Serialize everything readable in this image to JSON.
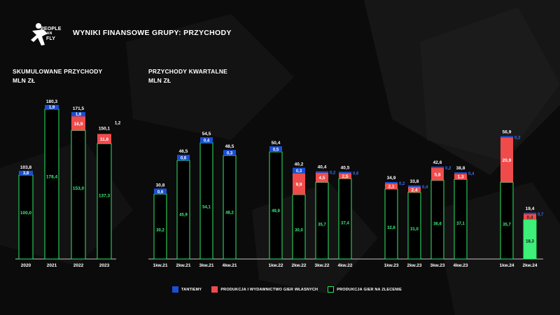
{
  "header": {
    "logo_line1": "PEOPLE",
    "logo_line2": "CAN",
    "logo_line3": "FLY",
    "title": "WYNIKI FINANSOWE GRUPY: PRZYCHODY"
  },
  "cumulative_section": {
    "title_line1": "SKUMULOWANE PRZYCHODY",
    "title_line2": "MLN ZŁ"
  },
  "quarterly_section": {
    "title_line1": "PRZYCHODY KWARTALNE",
    "title_line2": "MLN ZŁ"
  },
  "legend": [
    {
      "label": "TANTIEMY",
      "color": "#1a4fd6"
    },
    {
      "label": "PRODUKCJA I WYDAWNICTWO GIER WŁASNYCH",
      "color": "#f04b4b"
    },
    {
      "label": "PRODUKCJA GIER NA ZLECENIE",
      "color": "#2ee866"
    }
  ],
  "colors": {
    "tantiemy": "#1a4fd6",
    "own": "#f04b4b",
    "contract": "#2ee866",
    "contract_fill": "#000000",
    "contract_highlight_fill": "#3ef07a",
    "contract_label": "#3ef07a",
    "royalty_outside_label": "#3a6df0"
  },
  "chart_data": [
    {
      "type": "bar",
      "stacked": true,
      "title": "SKUMULOWANE PRZYCHODY MLN ZŁ",
      "categories": [
        "2020",
        "2021",
        "2022",
        "2023"
      ],
      "series": [
        {
          "name": "PRODUKCJA GIER NA ZLECENIE",
          "values": [
            100.0,
            178.4,
            153.0,
            137.3
          ],
          "labels": [
            "100,0",
            "178,4",
            "153,0",
            "137,3"
          ]
        },
        {
          "name": "PRODUKCJA I WYDAWNICTWO GIER WŁASNYCH",
          "values": [
            0,
            0,
            16.9,
            11.6
          ],
          "labels": [
            "",
            "",
            "16,9",
            "11,6"
          ]
        },
        {
          "name": "TANTIEMY",
          "values": [
            3.8,
            1.9,
            1.6,
            1.2
          ],
          "labels": [
            "3,8",
            "1,9",
            "1,6",
            "1,2"
          ]
        }
      ],
      "totals": [
        "103,8",
        "180,3",
        "171,5",
        "150,1"
      ],
      "ylim": [
        0,
        190
      ]
    },
    {
      "type": "bar",
      "stacked": true,
      "title": "PRZYCHODY KWARTALNE MLN ZŁ",
      "categories": [
        "1kw.21",
        "2kw.21",
        "3kw.21",
        "4kw.21",
        "1kw.22",
        "2kw.22",
        "3kw.22",
        "4kw.22",
        "1kw.23",
        "2kw.23",
        "3kw.23",
        "4kw.23",
        "1kw.24",
        "2kw.24"
      ],
      "series": [
        {
          "name": "PRODUKCJA GIER NA ZLECENIE",
          "values": [
            30.2,
            45.9,
            54.1,
            48.2,
            49.9,
            30.0,
            35.7,
            37.4,
            32.6,
            31.0,
            36.6,
            37.1,
            35.7,
            18.3
          ],
          "labels": [
            "30,2",
            "45,9",
            "54,1",
            "48,2",
            "49,9",
            "30,0",
            "35,7",
            "37,4",
            "32,6",
            "31,0",
            "36,6",
            "37,1",
            "35,7",
            "18,3"
          ]
        },
        {
          "name": "PRODUKCJA I WYDAWNICTWO GIER WŁASNYCH",
          "values": [
            0,
            0,
            0,
            0,
            0,
            9.9,
            4.5,
            2.5,
            2.1,
            2.4,
            5.8,
            1.3,
            20.9,
            0.4
          ],
          "labels": [
            "",
            "",
            "",
            "",
            "",
            "9,9",
            "4,5",
            "2,5",
            "2,1",
            "2,4",
            "5,8",
            "1,3",
            "20,9",
            "0,4"
          ]
        },
        {
          "name": "TANTIEMY",
          "values": [
            0.6,
            0.6,
            0.4,
            0.3,
            0.5,
            0.3,
            0.2,
            0.6,
            0.2,
            0.4,
            0.2,
            0.4,
            0.3,
            0.7
          ],
          "labels": [
            "0,6",
            "0,6",
            "0,4",
            "0,3",
            "0,5",
            "0,3",
            "0,2",
            "0,6",
            "0,2",
            "0,4",
            "0,2",
            "0,4",
            "0,3",
            "0,7"
          ]
        }
      ],
      "totals": [
        "30,8",
        "46,5",
        "54,5",
        "48,5",
        "50,4",
        "40,2",
        "40,4",
        "40,5",
        "34,9",
        "33,8",
        "42,6",
        "38,8",
        "56,9",
        "19,4"
      ],
      "highlight_category": "2kw.24",
      "ylim": [
        0,
        60
      ]
    }
  ]
}
